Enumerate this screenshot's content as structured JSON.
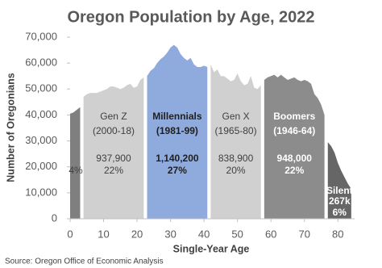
{
  "chart_data": {
    "type": "area",
    "title": "Oregon Population by Age, 2022",
    "x_label": "Single-Year Age",
    "y_label": "Number of Oregonians",
    "source": "Source: Oregon Office of Economic Analysis",
    "xlim": [
      0,
      85
    ],
    "xticks": [
      0,
      10,
      20,
      30,
      40,
      50,
      60,
      70,
      80
    ],
    "ylim": [
      0,
      70000
    ],
    "yticks": [
      0,
      {
        "value": 10000,
        "label": "10,000"
      },
      {
        "value": 20000,
        "label": "20,000"
      },
      {
        "value": 30000,
        "label": "30,000"
      },
      {
        "value": 40000,
        "label": "40,000"
      },
      {
        "value": 50000,
        "label": "50,000"
      },
      {
        "value": 60000,
        "label": "60,000"
      },
      {
        "value": 70000,
        "label": "70,000"
      }
    ],
    "series": [
      {
        "color": "#7f7f7f",
        "labels": [
          "4%"
        ],
        "x": [
          0,
          1,
          2,
          3
        ],
        "values": [
          40500,
          41000,
          42000,
          43000
        ]
      },
      {
        "name": "Gen Z",
        "color": "#d0d0d0",
        "labels": [
          "(2000-18)",
          "937,900",
          "22%"
        ],
        "x": [
          4,
          5,
          6,
          7,
          8,
          9,
          10,
          11,
          12,
          13,
          14,
          15,
          16,
          17,
          18,
          19,
          20,
          21,
          22
        ],
        "values": [
          47000,
          48000,
          48500,
          48500,
          48500,
          49000,
          49500,
          50000,
          51000,
          51000,
          50500,
          50000,
          50500,
          51500,
          52000,
          50500,
          51000,
          53500,
          54500
        ]
      },
      {
        "name": "Millennials",
        "color": "#8faadc",
        "labels": [
          "(1981-99)",
          "1,140,200",
          "27%"
        ],
        "x": [
          23,
          24,
          25,
          26,
          27,
          28,
          29,
          30,
          31,
          32,
          33,
          34,
          35,
          36,
          37,
          38,
          39,
          40,
          41
        ],
        "values": [
          55000,
          57000,
          58000,
          60000,
          61500,
          62500,
          64000,
          66000,
          67000,
          66000,
          63500,
          62000,
          61000,
          62000,
          59500,
          58500,
          58500,
          59000,
          58500
        ]
      },
      {
        "name": "Gen X",
        "color": "#d0d0d0",
        "labels": [
          "(1965-80)",
          "838,900",
          "20%"
        ],
        "x": [
          42,
          43,
          44,
          45,
          46,
          47,
          48,
          49,
          50,
          51,
          52,
          53,
          54,
          55,
          56,
          57
        ],
        "values": [
          59500,
          56500,
          57500,
          55000,
          55000,
          54000,
          53000,
          53500,
          56000,
          53000,
          51500,
          52000,
          55000,
          50500,
          50000,
          51500
        ]
      },
      {
        "name": "Boomers",
        "color": "#8c8c8c",
        "labels": [
          "(1946-64)",
          "948,000",
          "22%"
        ],
        "x": [
          58,
          59,
          60,
          61,
          62,
          63,
          64,
          65,
          66,
          67,
          68,
          69,
          70,
          71,
          72,
          73,
          74,
          75,
          76
        ],
        "values": [
          53500,
          54500,
          55000,
          55500,
          54500,
          55500,
          54500,
          53500,
          54000,
          54500,
          53500,
          53000,
          53500,
          53000,
          52000,
          48000,
          46500,
          44000,
          40000
        ]
      },
      {
        "name": "Silent",
        "color": "#666666",
        "labels": [
          "267k",
          "6%"
        ],
        "x": [
          77,
          78,
          79,
          80,
          81,
          82,
          83,
          84
        ],
        "values": [
          29500,
          28000,
          25500,
          21500,
          18500,
          16000,
          13500,
          11500
        ]
      }
    ]
  }
}
